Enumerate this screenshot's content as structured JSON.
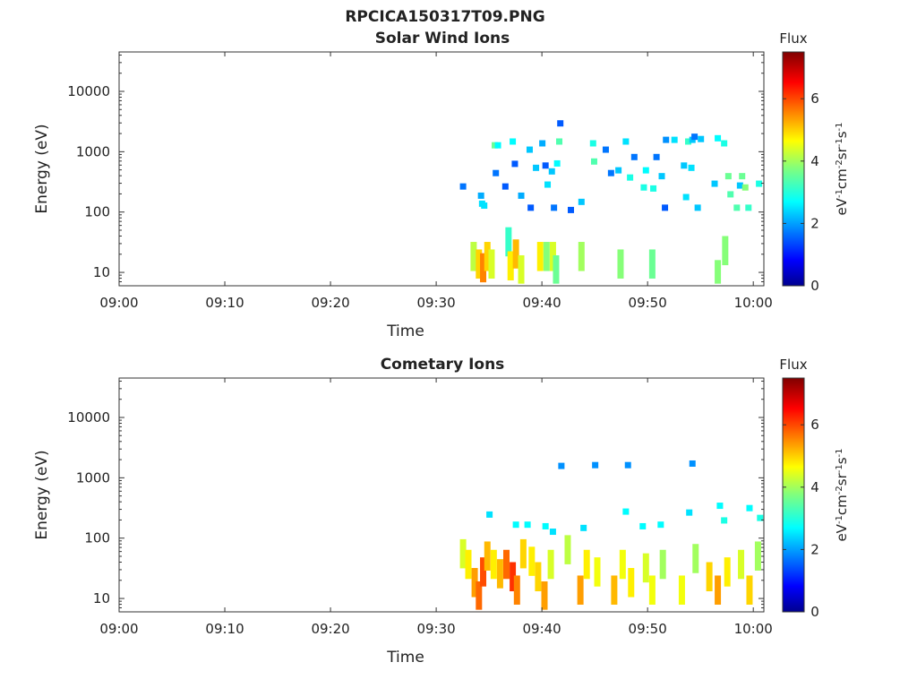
{
  "figure_title": "RPCICA150317T09.PNG",
  "chart_data": [
    {
      "type": "heatmap",
      "title": "Solar Wind Ions",
      "xlabel": "Time",
      "ylabel": "Energy (eV)",
      "x_ticks": [
        "09:00",
        "09:10",
        "09:20",
        "09:30",
        "09:40",
        "09:50",
        "10:00"
      ],
      "y_ticks": [
        "10",
        "100",
        "1000",
        "10000"
      ],
      "y_scale": "log",
      "ylim": [
        6,
        45000
      ],
      "xlim_minutes": [
        0,
        61
      ],
      "colorbar": {
        "title": "Flux",
        "label": "eV-1cm-2sr-1s-1",
        "ticks": [
          "0",
          "2",
          "4",
          "6"
        ],
        "range": [
          0,
          7.5
        ],
        "colormap": "jet"
      },
      "cells": [
        [
          32.5,
          270,
          1.8
        ],
        [
          34.2,
          190,
          2.2
        ],
        [
          34.3,
          140,
          2.6
        ],
        [
          34.5,
          130,
          2.6
        ],
        [
          35.5,
          1300,
          3.6
        ],
        [
          35.6,
          450,
          1.8
        ],
        [
          35.8,
          1300,
          2.8
        ],
        [
          36.5,
          270,
          1.6
        ],
        [
          37.2,
          1500,
          2.8
        ],
        [
          37.4,
          640,
          1.6
        ],
        [
          38.0,
          190,
          2.2
        ],
        [
          38.8,
          1100,
          2.4
        ],
        [
          38.9,
          120,
          1.6
        ],
        [
          39.4,
          550,
          2.4
        ],
        [
          40.0,
          1400,
          2.2
        ],
        [
          40.3,
          600,
          1.6
        ],
        [
          40.5,
          290,
          2.6
        ],
        [
          40.9,
          480,
          2.4
        ],
        [
          41.1,
          120,
          1.8
        ],
        [
          41.4,
          650,
          2.8
        ],
        [
          41.6,
          1500,
          3.4
        ],
        [
          41.7,
          3000,
          1.6
        ],
        [
          42.7,
          110,
          1.6
        ],
        [
          43.7,
          150,
          2.4
        ],
        [
          44.8,
          1400,
          3.0
        ],
        [
          44.9,
          700,
          3.4
        ],
        [
          46.0,
          1100,
          1.8
        ],
        [
          46.5,
          450,
          1.8
        ],
        [
          47.2,
          500,
          2.4
        ],
        [
          47.9,
          1500,
          2.6
        ],
        [
          48.3,
          380,
          3.0
        ],
        [
          48.7,
          830,
          1.8
        ],
        [
          49.6,
          260,
          3.0
        ],
        [
          49.8,
          500,
          2.8
        ],
        [
          50.5,
          250,
          3.0
        ],
        [
          50.8,
          830,
          1.8
        ],
        [
          51.3,
          400,
          2.4
        ],
        [
          51.6,
          120,
          1.6
        ],
        [
          51.7,
          1600,
          2.0
        ],
        [
          52.5,
          1600,
          2.6
        ],
        [
          53.4,
          600,
          2.4
        ],
        [
          53.6,
          180,
          2.6
        ],
        [
          53.8,
          1500,
          3.2
        ],
        [
          54.1,
          550,
          2.6
        ],
        [
          54.2,
          1600,
          2.4
        ],
        [
          54.4,
          1800,
          1.8
        ],
        [
          54.7,
          120,
          2.4
        ],
        [
          55.0,
          1650,
          2.4
        ],
        [
          56.3,
          300,
          2.4
        ],
        [
          56.6,
          1700,
          2.8
        ],
        [
          57.2,
          1400,
          3.0
        ],
        [
          57.6,
          400,
          3.6
        ],
        [
          57.8,
          200,
          3.4
        ],
        [
          58.4,
          120,
          3.4
        ],
        [
          58.7,
          280,
          2.4
        ],
        [
          58.9,
          400,
          3.6
        ],
        [
          59.2,
          260,
          3.8
        ],
        [
          59.5,
          120,
          3.2
        ],
        [
          60.5,
          300,
          3.0
        ]
      ],
      "low_bands": [
        [
          33.5,
          20,
          4.2
        ],
        [
          34.0,
          15,
          5.0
        ],
        [
          34.4,
          13,
          5.6
        ],
        [
          34.8,
          20,
          5.0
        ],
        [
          35.2,
          15,
          4.4
        ],
        [
          36.8,
          35,
          3.2
        ],
        [
          37.0,
          14,
          4.8
        ],
        [
          37.5,
          22,
          5.2
        ],
        [
          38.0,
          12,
          4.4
        ],
        [
          39.8,
          20,
          4.8
        ],
        [
          40.4,
          20,
          3.8
        ],
        [
          41.0,
          20,
          4.4
        ],
        [
          41.3,
          12,
          3.6
        ],
        [
          43.7,
          20,
          4.0
        ],
        [
          47.4,
          15,
          3.8
        ],
        [
          50.4,
          15,
          3.6
        ],
        [
          56.6,
          10,
          3.8
        ],
        [
          57.3,
          25,
          3.8
        ]
      ]
    },
    {
      "type": "heatmap",
      "title": "Cometary Ions",
      "xlabel": "Time",
      "ylabel": "Energy (eV)",
      "x_ticks": [
        "09:00",
        "09:10",
        "09:20",
        "09:30",
        "09:40",
        "09:50",
        "10:00"
      ],
      "y_ticks": [
        "10",
        "100",
        "1000",
        "10000"
      ],
      "y_scale": "log",
      "ylim": [
        6,
        45000
      ],
      "xlim_minutes": [
        0,
        61
      ],
      "colorbar": {
        "title": "Flux",
        "label": "eV-1cm-2sr-1s-1",
        "ticks": [
          "0",
          "2",
          "4",
          "6"
        ],
        "range": [
          0,
          7.5
        ],
        "colormap": "jet"
      },
      "cells": [
        [
          41.8,
          1600,
          2.0
        ],
        [
          45.0,
          1650,
          2.0
        ],
        [
          48.1,
          1650,
          2.0
        ],
        [
          54.2,
          1750,
          2.0
        ],
        [
          35.0,
          250,
          2.6
        ],
        [
          37.5,
          170,
          2.8
        ],
        [
          38.6,
          170,
          2.8
        ],
        [
          40.3,
          160,
          2.8
        ],
        [
          41.0,
          130,
          2.6
        ],
        [
          43.9,
          150,
          2.6
        ],
        [
          47.9,
          280,
          2.8
        ],
        [
          49.5,
          160,
          2.8
        ],
        [
          51.2,
          170,
          2.8
        ],
        [
          53.9,
          270,
          2.6
        ],
        [
          56.8,
          350,
          2.8
        ],
        [
          57.2,
          200,
          3.0
        ],
        [
          59.6,
          320,
          2.8
        ],
        [
          60.6,
          220,
          3.0
        ]
      ],
      "low_bands": [
        [
          32.5,
          60,
          4.4
        ],
        [
          33.0,
          40,
          4.8
        ],
        [
          33.6,
          20,
          5.4
        ],
        [
          34.0,
          12,
          5.8
        ],
        [
          34.4,
          30,
          6.0
        ],
        [
          34.8,
          55,
          5.2
        ],
        [
          35.4,
          40,
          4.8
        ],
        [
          36.0,
          28,
          5.2
        ],
        [
          36.6,
          40,
          5.8
        ],
        [
          37.2,
          25,
          6.2
        ],
        [
          37.6,
          15,
          5.6
        ],
        [
          38.2,
          60,
          5.0
        ],
        [
          39.0,
          45,
          4.8
        ],
        [
          39.6,
          25,
          5.0
        ],
        [
          40.2,
          12,
          5.4
        ],
        [
          40.8,
          40,
          4.4
        ],
        [
          42.4,
          70,
          4.2
        ],
        [
          43.6,
          15,
          5.4
        ],
        [
          44.2,
          40,
          4.8
        ],
        [
          45.2,
          30,
          4.6
        ],
        [
          46.8,
          15,
          5.2
        ],
        [
          47.6,
          40,
          4.6
        ],
        [
          48.4,
          20,
          4.8
        ],
        [
          49.8,
          35,
          4.4
        ],
        [
          50.4,
          15,
          4.6
        ],
        [
          51.4,
          40,
          4.0
        ],
        [
          53.2,
          15,
          4.6
        ],
        [
          54.5,
          50,
          4.0
        ],
        [
          55.8,
          25,
          5.0
        ],
        [
          56.6,
          15,
          5.4
        ],
        [
          57.5,
          30,
          4.8
        ],
        [
          58.8,
          40,
          4.4
        ],
        [
          59.6,
          15,
          5.0
        ],
        [
          60.4,
          55,
          4.0
        ]
      ]
    }
  ]
}
